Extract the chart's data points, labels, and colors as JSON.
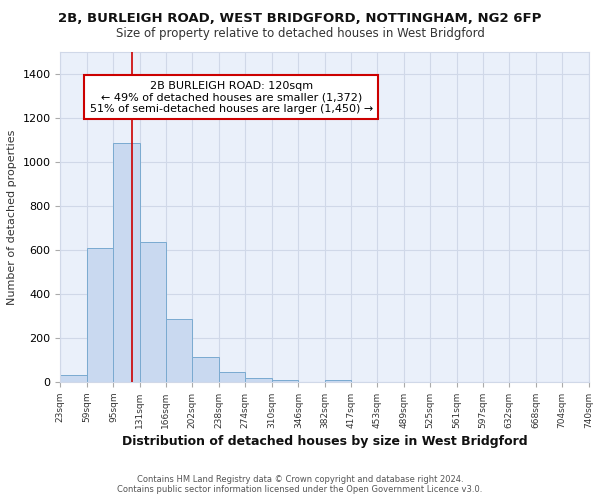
{
  "title1": "2B, BURLEIGH ROAD, WEST BRIDGFORD, NOTTINGHAM, NG2 6FP",
  "title2": "Size of property relative to detached houses in West Bridgford",
  "xlabel": "Distribution of detached houses by size in West Bridgford",
  "ylabel": "Number of detached properties",
  "footnote1": "Contains HM Land Registry data © Crown copyright and database right 2024.",
  "footnote2": "Contains public sector information licensed under the Open Government Licence v3.0.",
  "bar_edges": [
    23,
    59,
    95,
    131,
    166,
    202,
    238,
    274,
    310,
    346,
    382,
    417,
    453,
    489,
    525,
    561,
    597,
    632,
    668,
    704,
    740
  ],
  "bar_heights": [
    30,
    610,
    1085,
    635,
    285,
    115,
    45,
    20,
    10,
    0,
    10,
    0,
    0,
    0,
    0,
    0,
    0,
    0,
    0,
    0
  ],
  "bar_color": "#c9d9f0",
  "bar_edge_color": "#7aaad0",
  "red_line_x": 120,
  "annotation_line1": "2B BURLEIGH ROAD: 120sqm",
  "annotation_line2": "← 49% of detached houses are smaller (1,372)",
  "annotation_line3": "51% of semi-detached houses are larger (1,450) →",
  "annotation_box_color": "#ffffff",
  "annotation_box_edge_color": "#cc0000",
  "ylim": [
    0,
    1500
  ],
  "xlim": [
    23,
    740
  ],
  "tick_labels": [
    "23sqm",
    "59sqm",
    "95sqm",
    "131sqm",
    "166sqm",
    "202sqm",
    "238sqm",
    "274sqm",
    "310sqm",
    "346sqm",
    "382sqm",
    "417sqm",
    "453sqm",
    "489sqm",
    "525sqm",
    "561sqm",
    "597sqm",
    "632sqm",
    "668sqm",
    "704sqm",
    "740sqm"
  ],
  "grid_color": "#d0d8e8",
  "bg_color": "#eaf0fa",
  "title1_fontsize": 9.5,
  "title2_fontsize": 8.5,
  "ylabel_fontsize": 8,
  "xlabel_fontsize": 9,
  "footnote_fontsize": 6,
  "annotation_fontsize": 8
}
